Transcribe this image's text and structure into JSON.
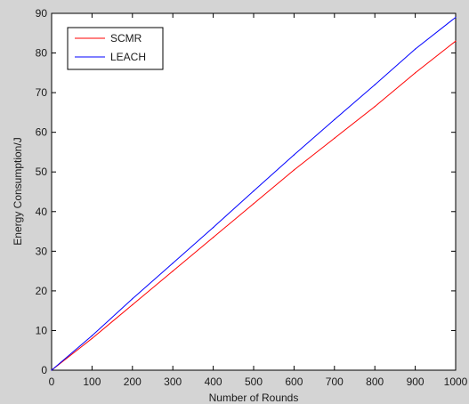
{
  "chart_data": {
    "type": "line",
    "title": "",
    "xlabel": "Number of Rounds",
    "ylabel": "Energy Consumption/J",
    "xlim": [
      0,
      1000
    ],
    "ylim": [
      0,
      90
    ],
    "x_ticks": [
      0,
      100,
      200,
      300,
      400,
      500,
      600,
      700,
      800,
      900,
      1000
    ],
    "y_ticks": [
      0,
      10,
      20,
      30,
      40,
      50,
      60,
      70,
      80,
      90
    ],
    "grid": false,
    "legend_position": "top-left",
    "x": [
      0,
      100,
      200,
      300,
      400,
      500,
      600,
      700,
      800,
      900,
      1000
    ],
    "series": [
      {
        "name": "SCMR",
        "color": "#ff0000",
        "values": [
          0,
          8,
          16.5,
          25,
          33.5,
          42,
          50.5,
          58.5,
          66.5,
          75,
          83
        ]
      },
      {
        "name": "LEACH",
        "color": "#0000ff",
        "values": [
          0,
          8.7,
          18,
          27,
          36,
          45.2,
          54.3,
          63.2,
          72,
          81,
          89
        ]
      }
    ]
  }
}
